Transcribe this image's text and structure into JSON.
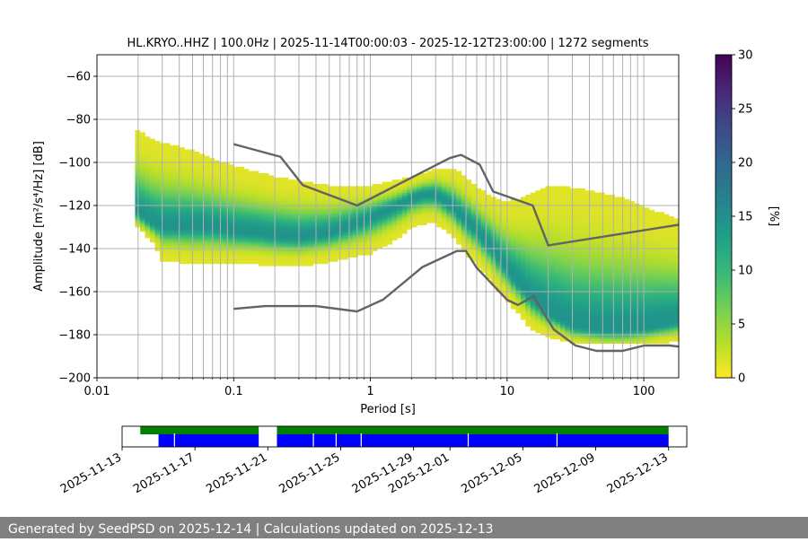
{
  "footer": {
    "text": "Generated by SeedPSD on 2025-12-14 | Calculations updated on 2025-12-13"
  },
  "colors": {
    "viridis_stops": [
      "#fde725",
      "#b5de2b",
      "#6ece58",
      "#35b779",
      "#1f9e89",
      "#26828e",
      "#31688e",
      "#3e4989",
      "#482878",
      "#440154"
    ],
    "noise_model": "#636363",
    "grid": "#b0b0b0",
    "availability_green": "#008000",
    "availability_blue": "#0000ff"
  },
  "chart_data": [
    {
      "type": "heatmap",
      "title": "HL.KRYO..HHZ | 100.0Hz | 2025-11-14T00:00:03 - 2025-12-12T23:00:00 | 1272 segments",
      "xlabel": "Period [s]",
      "ylabel": "Amplitude [m²/s⁴/Hz] [dB]",
      "x_scale": "log",
      "xlim": [
        0.01,
        180
      ],
      "ylim": [
        -200,
        -50
      ],
      "x_ticks": [
        0.01,
        0.1,
        1,
        10,
        100
      ],
      "x_tick_labels": [
        "0.01",
        "0.1",
        "1",
        "10",
        "100"
      ],
      "y_ticks": [
        -200,
        -180,
        -160,
        -140,
        -120,
        -100,
        -80,
        -60
      ],
      "y_tick_labels": [
        "−200",
        "−180",
        "−160",
        "−140",
        "−120",
        "−100",
        "−80",
        "−60"
      ],
      "grid": true,
      "colorbar": {
        "label": "[%]",
        "range": [
          0,
          30
        ],
        "ticks": [
          0,
          5,
          10,
          15,
          20,
          25,
          30
        ],
        "tick_labels": [
          "0",
          "5",
          "10",
          "15",
          "20",
          "25",
          "30"
        ]
      },
      "psd_mode_curve": {
        "period": [
          0.019,
          0.025,
          0.03,
          0.05,
          0.07,
          0.1,
          0.15,
          0.2,
          0.3,
          0.5,
          0.7,
          1,
          1.5,
          2,
          2.5,
          3,
          4,
          5,
          6,
          8,
          10,
          15,
          20,
          30,
          50,
          70,
          100,
          150,
          180
        ],
        "amplitude": [
          -122,
          -128,
          -130,
          -130,
          -130,
          -132,
          -133,
          -134,
          -135,
          -133,
          -130,
          -126,
          -121,
          -117,
          -115,
          -115,
          -121,
          -127,
          -132,
          -141,
          -150,
          -163,
          -170,
          -176,
          -178,
          -178,
          -177,
          -175,
          -174
        ]
      },
      "spread_upper": [
        -86,
        -90,
        -92,
        -96,
        -100,
        -103,
        -106,
        -108,
        -110,
        -112,
        -112,
        -112,
        -110,
        -108,
        -106,
        -104,
        -104,
        -108,
        -113,
        -118,
        -120,
        -116,
        -112,
        -113,
        -116,
        -118,
        -122,
        -126,
        -128
      ],
      "spread_lower": [
        -128,
        -136,
        -145,
        -147,
        -147,
        -147,
        -147,
        -148,
        -148,
        -146,
        -144,
        -142,
        -136,
        -130,
        -128,
        -128,
        -134,
        -142,
        -147,
        -157,
        -164,
        -177,
        -181,
        -183,
        -184,
        -184,
        -184,
        -183,
        -182
      ],
      "high_noise_model": {
        "period": [
          0.1,
          0.22,
          0.32,
          0.8,
          3.8,
          4.6,
          6.3,
          7.9,
          15.4,
          20,
          354.8
        ],
        "amplitude": [
          -91.5,
          -97.4,
          -110.5,
          -120,
          -98,
          -96.5,
          -101,
          -113.5,
          -120,
          -138.5,
          -126
        ]
      },
      "low_noise_model": {
        "period": [
          0.1,
          0.17,
          0.4,
          0.8,
          1.24,
          2.4,
          4.3,
          5,
          6,
          10,
          12,
          15.6,
          21.9,
          31.6,
          45,
          70,
          101,
          154,
          328
        ],
        "amplitude": [
          -168,
          -166.7,
          -166.7,
          -169.2,
          -163.7,
          -148.6,
          -141.1,
          -141.1,
          -149,
          -163.8,
          -166.2,
          -162.1,
          -177.5,
          -185,
          -187.5,
          -187.5,
          -185,
          -185,
          -187.5
        ]
      }
    },
    {
      "type": "timeline",
      "x_ticks": [
        "2025-11-13",
        "2025-11-17",
        "2025-11-21",
        "2025-11-25",
        "2025-11-29",
        "2025-12-01",
        "2025-12-05",
        "2025-12-09",
        "2025-12-13"
      ],
      "xlim": [
        "2025-11-13",
        "2025-12-14"
      ],
      "green_segments": [
        [
          "2025-11-14T00:00",
          "2025-11-20T12:00"
        ],
        [
          "2025-11-21T12:00",
          "2025-12-13T00:00"
        ]
      ],
      "blue_segments": [
        [
          "2025-11-15T00:00",
          "2025-11-20T12:00"
        ],
        [
          "2025-11-21T12:00",
          "2025-12-13T00:00"
        ]
      ],
      "gaps": [
        "2025-11-15T21:00",
        "2025-11-23T12:00",
        "2025-11-24T18:00",
        "2025-11-26T03:00",
        "2025-12-02T00:00",
        "2025-12-06T21:00"
      ]
    }
  ]
}
